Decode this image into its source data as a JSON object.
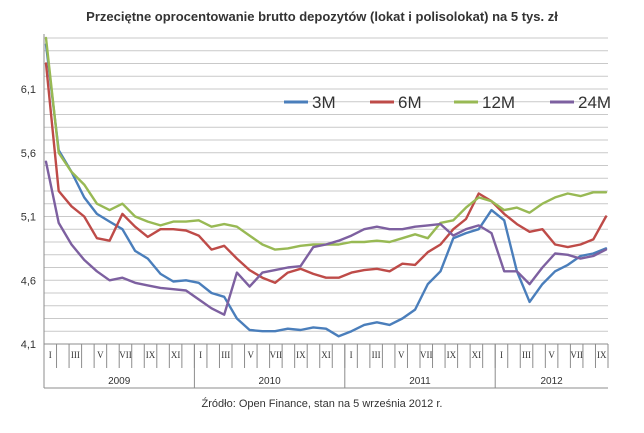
{
  "chart_data": {
    "type": "line",
    "title": "Przeciętne oprocentowanie  brutto  depozytów (lokat i polisolokat) na 5 tys. zł",
    "source": "Źródło: Open Finance, stan na 5 września 2012 r.",
    "ylim": [
      4.1,
      6.5
    ],
    "yticks": [
      "4,1",
      "4,6",
      "5,1",
      "5,6",
      "6,1"
    ],
    "ytick_values": [
      4.1,
      4.6,
      5.1,
      5.6,
      6.1
    ],
    "grid": "horizontal",
    "legend_position": "top-right",
    "month_labels": [
      "I",
      "",
      "III",
      "",
      "V",
      "",
      "VII",
      "",
      "IX",
      "",
      "XI",
      "",
      "I",
      "",
      "III",
      "",
      "V",
      "",
      "VII",
      "",
      "IX",
      "",
      "XI",
      "",
      "I",
      "",
      "III",
      "",
      "V",
      "",
      "VII",
      "",
      "IX",
      "",
      "XI",
      "",
      "I",
      "",
      "III",
      "",
      "V",
      "",
      "VII",
      "",
      "IX"
    ],
    "years": [
      "2009",
      "2010",
      "2011",
      "2012"
    ],
    "x_unit": "half-month",
    "series": [
      {
        "name": "3M",
        "color": "#4a7ebb",
        "values": [
          6.45,
          5.62,
          5.45,
          5.25,
          5.12,
          5.06,
          5.0,
          4.83,
          4.77,
          4.65,
          4.59,
          4.6,
          4.58,
          4.5,
          4.47,
          4.3,
          4.21,
          4.2,
          4.2,
          4.22,
          4.21,
          4.23,
          4.22,
          4.16,
          4.2,
          4.25,
          4.27,
          4.25,
          4.3,
          4.37,
          4.57,
          4.67,
          4.93,
          4.97,
          5.0,
          5.15,
          5.07,
          4.67,
          4.43,
          4.57,
          4.67,
          4.72,
          4.79,
          4.81,
          4.85
        ]
      },
      {
        "name": "6M",
        "color": "#be4b48",
        "values": [
          6.3,
          5.3,
          5.18,
          5.1,
          4.93,
          4.91,
          5.12,
          5.02,
          4.94,
          5.0,
          5.0,
          4.99,
          4.95,
          4.84,
          4.87,
          4.77,
          4.68,
          4.62,
          4.58,
          4.66,
          4.69,
          4.65,
          4.62,
          4.62,
          4.66,
          4.68,
          4.69,
          4.67,
          4.73,
          4.72,
          4.82,
          4.88,
          5.0,
          5.08,
          5.28,
          5.22,
          5.12,
          5.04,
          4.98,
          5.0,
          4.88,
          4.86,
          4.88,
          4.92,
          5.1
        ]
      },
      {
        "name": "12M",
        "color": "#98b954",
        "values": [
          6.5,
          5.6,
          5.45,
          5.35,
          5.2,
          5.15,
          5.2,
          5.1,
          5.06,
          5.03,
          5.06,
          5.06,
          5.07,
          5.02,
          5.04,
          5.02,
          4.95,
          4.88,
          4.84,
          4.85,
          4.87,
          4.88,
          4.88,
          4.88,
          4.9,
          4.9,
          4.91,
          4.9,
          4.93,
          4.96,
          4.93,
          5.05,
          5.07,
          5.17,
          5.25,
          5.22,
          5.15,
          5.17,
          5.13,
          5.2,
          5.25,
          5.28,
          5.26,
          5.29,
          5.29
        ]
      },
      {
        "name": "24M",
        "color": "#7d60a0",
        "values": [
          5.53,
          5.05,
          4.88,
          4.76,
          4.67,
          4.6,
          4.62,
          4.58,
          4.56,
          4.54,
          4.53,
          4.52,
          4.45,
          4.38,
          4.33,
          4.66,
          4.55,
          4.66,
          4.68,
          4.7,
          4.71,
          4.86,
          4.88,
          4.91,
          4.95,
          5.0,
          5.02,
          5.0,
          5.0,
          5.02,
          5.03,
          5.04,
          4.95,
          5.0,
          5.03,
          4.97,
          4.67,
          4.67,
          4.57,
          4.7,
          4.81,
          4.8,
          4.77,
          4.79,
          4.84
        ]
      }
    ]
  }
}
